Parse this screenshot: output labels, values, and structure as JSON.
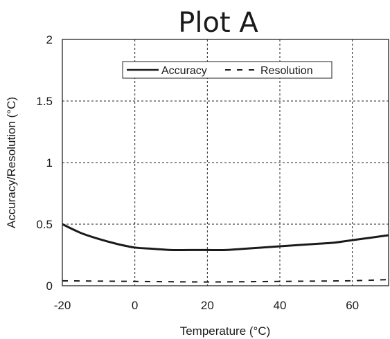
{
  "chart_data": {
    "type": "line",
    "title": "Plot A",
    "xlabel": "Temperature (°C)",
    "ylabel": "Accuracy/Resolution (°C)",
    "xlim": [
      -20,
      70
    ],
    "ylim": [
      0,
      2
    ],
    "x_ticks": [
      "-20",
      "0",
      "20",
      "40",
      "60"
    ],
    "y_ticks": [
      "0",
      "0.5",
      "1",
      "1.5",
      "2"
    ],
    "grid": true,
    "legend_position": "top-center",
    "series": [
      {
        "name": "Accuracy",
        "style": "solid",
        "color": "#1a1a1a",
        "x": [
          -20,
          -15,
          -10,
          -5,
          0,
          5,
          10,
          15,
          20,
          25,
          30,
          35,
          40,
          45,
          50,
          55,
          60,
          65,
          70
        ],
        "y": [
          0.5,
          0.43,
          0.38,
          0.34,
          0.31,
          0.3,
          0.29,
          0.29,
          0.29,
          0.29,
          0.3,
          0.31,
          0.32,
          0.33,
          0.34,
          0.35,
          0.37,
          0.39,
          0.41
        ]
      },
      {
        "name": "Resolution",
        "style": "dashed",
        "color": "#1a1a1a",
        "x": [
          -20,
          0,
          20,
          40,
          60,
          70
        ],
        "y": [
          0.04,
          0.035,
          0.03,
          0.035,
          0.04,
          0.05
        ]
      }
    ]
  }
}
